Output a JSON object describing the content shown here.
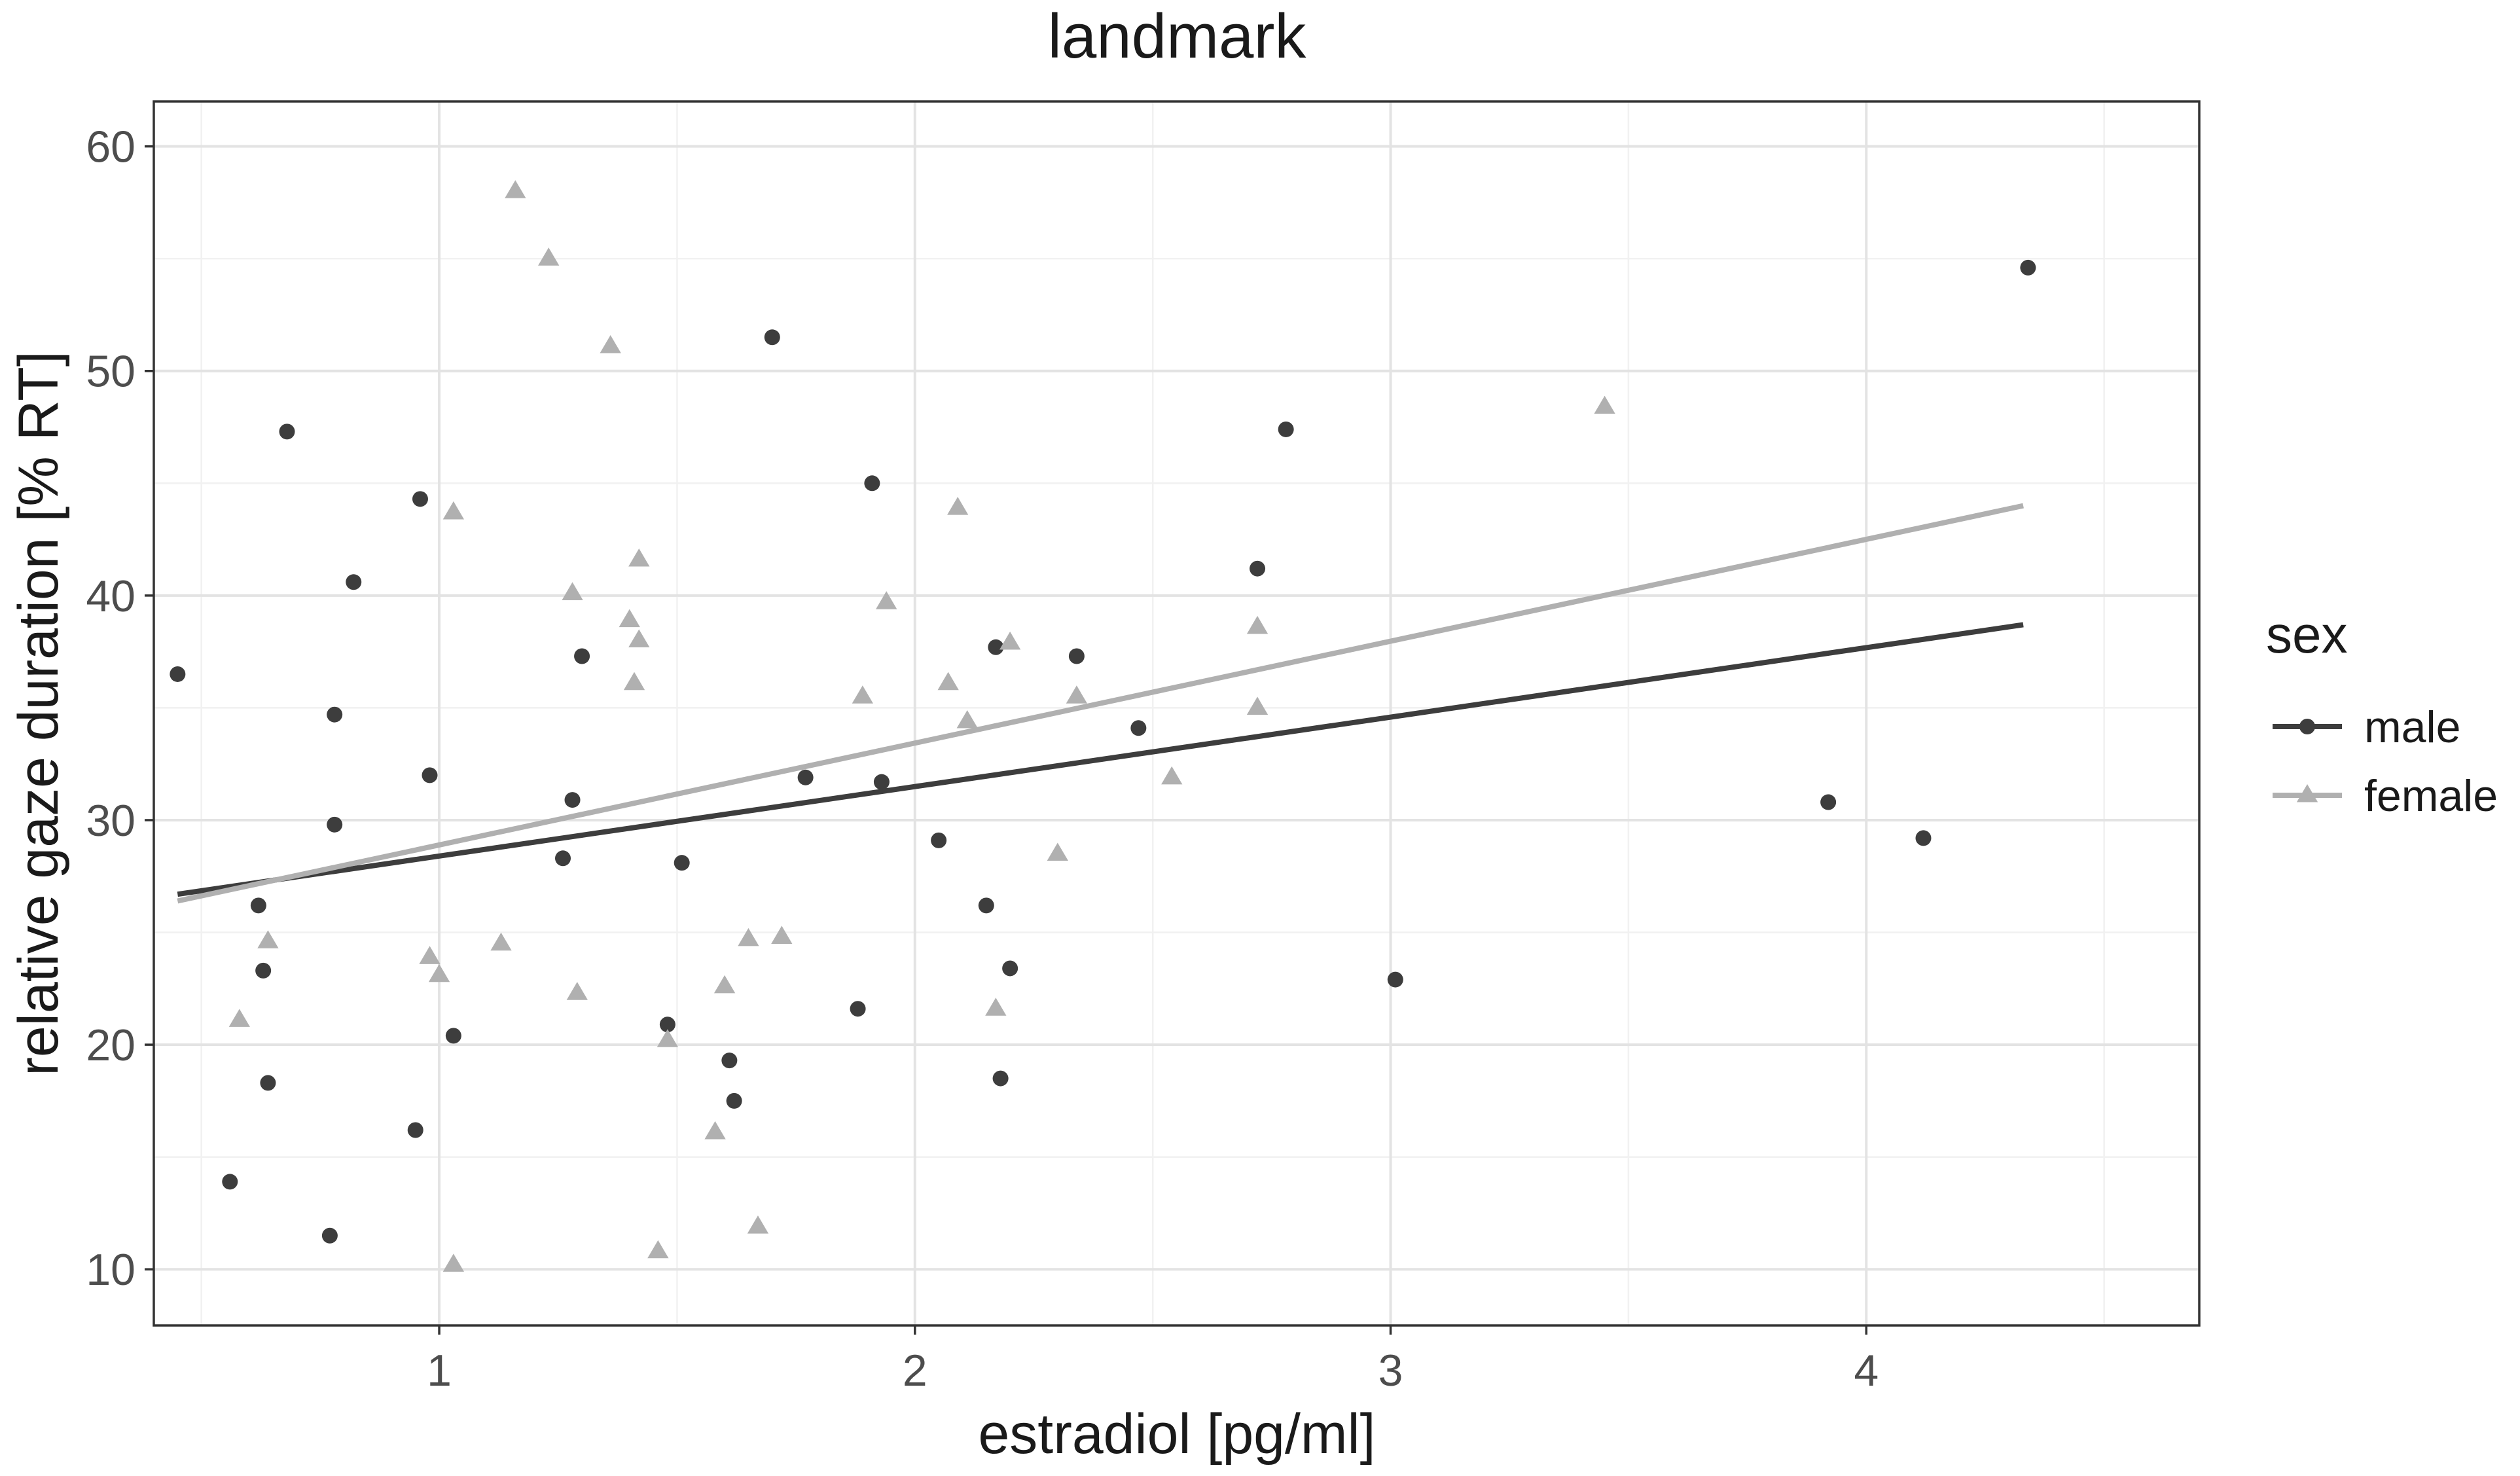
{
  "chart_data": {
    "type": "scatter",
    "title": "landmark",
    "xlabel": "estradiol [pg/ml]",
    "ylabel": "relative gaze duration [% RT]",
    "xlim": [
      0.4,
      4.7
    ],
    "ylim": [
      7.5,
      62
    ],
    "x_ticks": [
      1,
      2,
      3,
      4
    ],
    "y_ticks": [
      10,
      20,
      30,
      40,
      50,
      60
    ],
    "x_minor": [
      0.5,
      1.5,
      2.5,
      3.5,
      4.5
    ],
    "y_minor": [
      15,
      25,
      35,
      45,
      55
    ],
    "grid": true,
    "legend": {
      "title": "sex",
      "placement": "right"
    },
    "colors": {
      "male": "#3d3d3d",
      "female": "#b0b0b0"
    },
    "series": [
      {
        "name": "male",
        "marker": "circle",
        "points": [
          [
            0.45,
            36.5
          ],
          [
            0.56,
            13.9
          ],
          [
            0.62,
            26.2
          ],
          [
            0.63,
            23.3
          ],
          [
            0.64,
            18.3
          ],
          [
            0.68,
            47.3
          ],
          [
            0.77,
            11.5
          ],
          [
            0.78,
            34.7
          ],
          [
            0.78,
            29.8
          ],
          [
            0.82,
            40.6
          ],
          [
            0.95,
            16.2
          ],
          [
            0.96,
            44.3
          ],
          [
            0.98,
            32.0
          ],
          [
            1.03,
            20.4
          ],
          [
            1.26,
            28.3
          ],
          [
            1.28,
            30.9
          ],
          [
            1.3,
            37.3
          ],
          [
            1.48,
            20.9
          ],
          [
            1.51,
            28.1
          ],
          [
            1.61,
            19.3
          ],
          [
            1.62,
            17.5
          ],
          [
            1.7,
            51.5
          ],
          [
            1.77,
            31.9
          ],
          [
            1.88,
            21.6
          ],
          [
            1.91,
            45.0
          ],
          [
            1.93,
            31.7
          ],
          [
            2.05,
            29.1
          ],
          [
            2.15,
            26.2
          ],
          [
            2.17,
            37.7
          ],
          [
            2.18,
            18.5
          ],
          [
            2.2,
            23.4
          ],
          [
            2.34,
            37.3
          ],
          [
            2.47,
            34.1
          ],
          [
            2.72,
            41.2
          ],
          [
            2.78,
            47.4
          ],
          [
            3.01,
            22.9
          ],
          [
            3.92,
            30.8
          ],
          [
            4.12,
            29.2
          ],
          [
            4.34,
            54.6
          ]
        ],
        "fit": {
          "x": [
            0.45,
            4.33
          ],
          "y": [
            26.7,
            38.7
          ]
        }
      },
      {
        "name": "female",
        "marker": "triangle",
        "points": [
          [
            0.58,
            21.1
          ],
          [
            0.64,
            24.6
          ],
          [
            0.98,
            23.9
          ],
          [
            1.0,
            23.1
          ],
          [
            1.03,
            43.7
          ],
          [
            1.03,
            10.2
          ],
          [
            1.13,
            24.5
          ],
          [
            1.16,
            58.0
          ],
          [
            1.23,
            55.0
          ],
          [
            1.28,
            40.1
          ],
          [
            1.29,
            22.3
          ],
          [
            1.36,
            51.1
          ],
          [
            1.4,
            38.9
          ],
          [
            1.41,
            36.1
          ],
          [
            1.42,
            38.0
          ],
          [
            1.42,
            41.6
          ],
          [
            1.46,
            10.8
          ],
          [
            1.48,
            20.2
          ],
          [
            1.58,
            16.1
          ],
          [
            1.6,
            22.6
          ],
          [
            1.65,
            24.7
          ],
          [
            1.67,
            11.9
          ],
          [
            1.72,
            24.8
          ],
          [
            1.89,
            35.5
          ],
          [
            1.94,
            39.7
          ],
          [
            2.07,
            36.1
          ],
          [
            2.09,
            43.9
          ],
          [
            2.11,
            34.4
          ],
          [
            2.17,
            21.6
          ],
          [
            2.2,
            37.9
          ],
          [
            2.3,
            28.5
          ],
          [
            2.34,
            35.5
          ],
          [
            2.54,
            31.9
          ],
          [
            2.72,
            38.6
          ],
          [
            2.72,
            35.0
          ],
          [
            3.45,
            48.4
          ]
        ],
        "fit": {
          "x": [
            0.45,
            4.33
          ],
          "y": [
            26.4,
            44.0
          ]
        }
      }
    ]
  }
}
